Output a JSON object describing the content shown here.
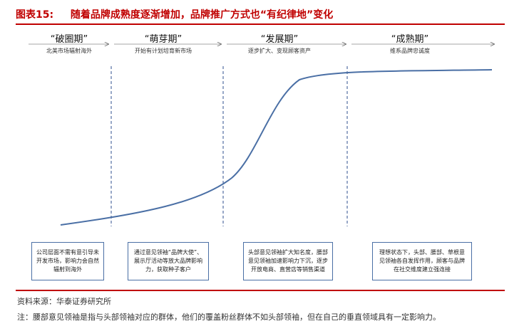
{
  "header": {
    "label": "图表15:",
    "title": "随着品牌成熟度逐渐增加，品牌推广方式也“有纪律地”变化"
  },
  "stages": [
    {
      "name": "“破圈期”",
      "subtitle": "北美市场辐射海外"
    },
    {
      "name": "“萌芽期”",
      "subtitle": "开始有计划培育新市场"
    },
    {
      "name": "“发展期”",
      "subtitle": "逐步扩大、变现顾客资产"
    },
    {
      "name": "“成熟期”",
      "subtitle": "维系品牌忠诚度"
    }
  ],
  "boxes": [
    {
      "text": "公司层面不需有意引导未开发市场，影响力会自然辐射到海外"
    },
    {
      "text": "通过意见领袖“品牌大使”、展示厅活动等放大品牌影响力，获取种子客户"
    },
    {
      "text": "头部意见领袖扩大知名度，腰部意见领袖加速影响力下沉，逐步开放电商、直营店等销售渠道"
    },
    {
      "text": "理想状态下，头部、腰部、草根意见领袖各自发挥作用，顾客与品牌在社交维度建立强连接"
    }
  ],
  "colors": {
    "accent": "#c00000",
    "curve": "#4a6fa5",
    "box_border": "#4a6fa5"
  },
  "footer": {
    "source": "资料来源：华泰证券研究所",
    "note": "注：腰部意见领袖是指与头部领袖对应的群体，他们的覆盖粉丝群体不如头部领袖，但在自己的垂直领域具有一定影响力。"
  }
}
